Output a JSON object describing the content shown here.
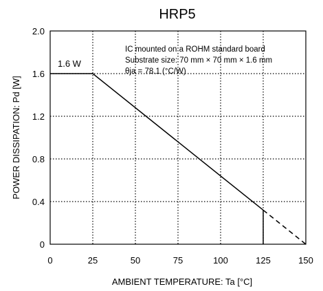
{
  "chart_data": {
    "type": "line",
    "title": "HRP5",
    "xlabel": "AMBIENT TEMPERATURE: Ta [°C]",
    "ylabel": "POWER DISSIPATION: Pd [W]",
    "xlim": [
      0,
      150
    ],
    "ylim": [
      0,
      2.0
    ],
    "x_ticks": [
      0,
      25,
      50,
      75,
      100,
      125,
      150
    ],
    "y_ticks": [
      0,
      0.4,
      0.8,
      1.2,
      1.6,
      2.0
    ],
    "x_tick_labels": [
      "0",
      "25",
      "50",
      "75",
      "100",
      "125",
      "150"
    ],
    "y_tick_labels": [
      "0",
      "0.4",
      "0.8",
      "1.2",
      "1.6",
      "2.0"
    ],
    "grid": true,
    "series": [
      {
        "style": "solid",
        "points": [
          [
            0,
            1.6
          ],
          [
            25,
            1.6
          ],
          [
            125,
            0.32
          ]
        ]
      },
      {
        "style": "dashed",
        "points": [
          [
            125,
            0.32
          ],
          [
            150,
            0
          ]
        ]
      },
      {
        "style": "solid-vertical",
        "points": [
          [
            125,
            0.32
          ],
          [
            125,
            0
          ]
        ]
      }
    ],
    "annotations": {
      "point_label": "1.6 W",
      "notes": [
        "IC mounted on a ROHM standard board",
        "Substrate size: 70 mm × 70 mm × 1.6 mm",
        "θja = 78.1 (°C/W)"
      ]
    }
  }
}
